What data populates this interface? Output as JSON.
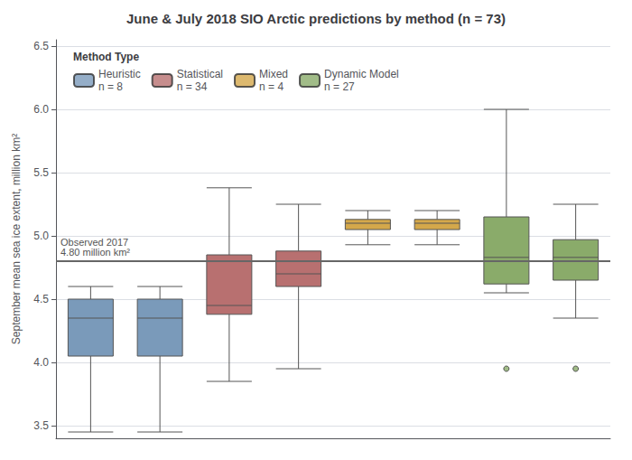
{
  "chart_data": {
    "type": "boxplot",
    "title": "June & July 2018 SIO Arctic predictions by method (n = 73)",
    "ylabel": "September mean sea ice extent, million km²",
    "ylim": [
      3.4,
      6.55
    ],
    "yticks": [
      3.5,
      {
        "value": 4.0,
        "label": "4.0"
      },
      4.5,
      {
        "value": 5.0,
        "label": "5.0"
      },
      5.5,
      {
        "value": 6.0,
        "label": "6.0"
      },
      6.5
    ],
    "grid": true,
    "tick_labels": "y",
    "legend": "upper left",
    "legend_title": "Method Type",
    "annotation": {
      "y": 4.8,
      "text": [
        "Observed 2017",
        "4.80 million km²"
      ]
    },
    "series": [
      {
        "name": "Heuristic\nn = 8",
        "color": "#7a9aba",
        "values": [
          {
            "whislo": 3.45,
            "q1": 4.05,
            "med": 4.35,
            "q3": 4.5,
            "whishi": 4.6,
            "fliers": []
          },
          {
            "whislo": 3.45,
            "q1": 4.05,
            "med": 4.35,
            "q3": 4.5,
            "whishi": 4.6,
            "fliers": []
          }
        ]
      },
      {
        "name": "Statistical\nn = 34",
        "color": "#b87070",
        "values": [
          {
            "whislo": 3.85,
            "q1": 4.38,
            "med": 4.45,
            "q3": 4.85,
            "whishi": 5.38,
            "fliers": []
          },
          {
            "whislo": 3.95,
            "q1": 4.6,
            "med": 4.7,
            "q3": 4.88,
            "whishi": 5.25,
            "fliers": []
          }
        ]
      },
      {
        "name": "Mixed\nn = 4",
        "color": "#d4a84b",
        "values": [
          {
            "whislo": 4.93,
            "q1": 5.05,
            "med": 5.1,
            "q3": 5.13,
            "whishi": 5.2,
            "fliers": []
          },
          {
            "whislo": 4.93,
            "q1": 5.05,
            "med": 5.1,
            "q3": 5.13,
            "whishi": 5.2,
            "fliers": []
          }
        ]
      },
      {
        "name": "Dynamic Model\nn = 27",
        "color": "#8aab6a",
        "values": [
          {
            "whislo": 4.55,
            "q1": 4.62,
            "med": 4.83,
            "q3": 5.15,
            "whishi": 6.0,
            "fliers": [
              3.95
            ]
          },
          {
            "whislo": 4.35,
            "q1": 4.65,
            "med": 4.83,
            "q3": 4.97,
            "whishi": 5.25,
            "fliers": [
              3.95
            ]
          }
        ]
      }
    ]
  }
}
